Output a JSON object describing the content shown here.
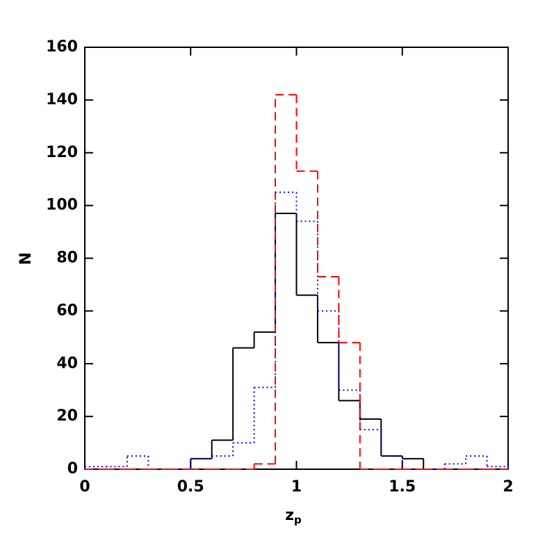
{
  "chart_data": {
    "type": "histogram",
    "xlabel": {
      "text": "z",
      "subscript": "p"
    },
    "ylabel": "N",
    "bins": [
      0,
      0.1,
      0.2,
      0.3,
      0.4,
      0.5,
      0.6,
      0.7,
      0.8,
      0.9,
      1.0,
      1.1,
      1.2,
      1.3,
      1.4,
      1.5,
      1.6,
      1.7,
      1.8,
      1.9,
      2.0
    ],
    "series": [
      {
        "color": "#000000",
        "style": "solid",
        "values": [
          0,
          0,
          0,
          0,
          0,
          4,
          11,
          46,
          52,
          97,
          66,
          48,
          26,
          19,
          5,
          4,
          0,
          0,
          0,
          0
        ]
      },
      {
        "color": "#0000ff",
        "style": "dotted",
        "values": [
          1,
          1,
          5,
          0,
          0,
          4,
          5,
          10,
          31,
          105,
          94,
          60,
          30,
          15,
          5,
          0,
          0,
          2,
          5,
          1
        ]
      },
      {
        "color": "#ff0000",
        "style": "dashed",
        "values": [
          0,
          0,
          0,
          0,
          0,
          0,
          0,
          0,
          2,
          142,
          113,
          73,
          48,
          0,
          0,
          0,
          0,
          0,
          0,
          0
        ]
      }
    ],
    "xlim": [
      0,
      2
    ],
    "xticks": [
      0,
      0.5,
      1,
      1.5,
      2
    ],
    "ylim": [
      0,
      160
    ],
    "yticks": [
      0,
      20,
      40,
      60,
      80,
      100,
      120,
      140,
      160
    ]
  }
}
